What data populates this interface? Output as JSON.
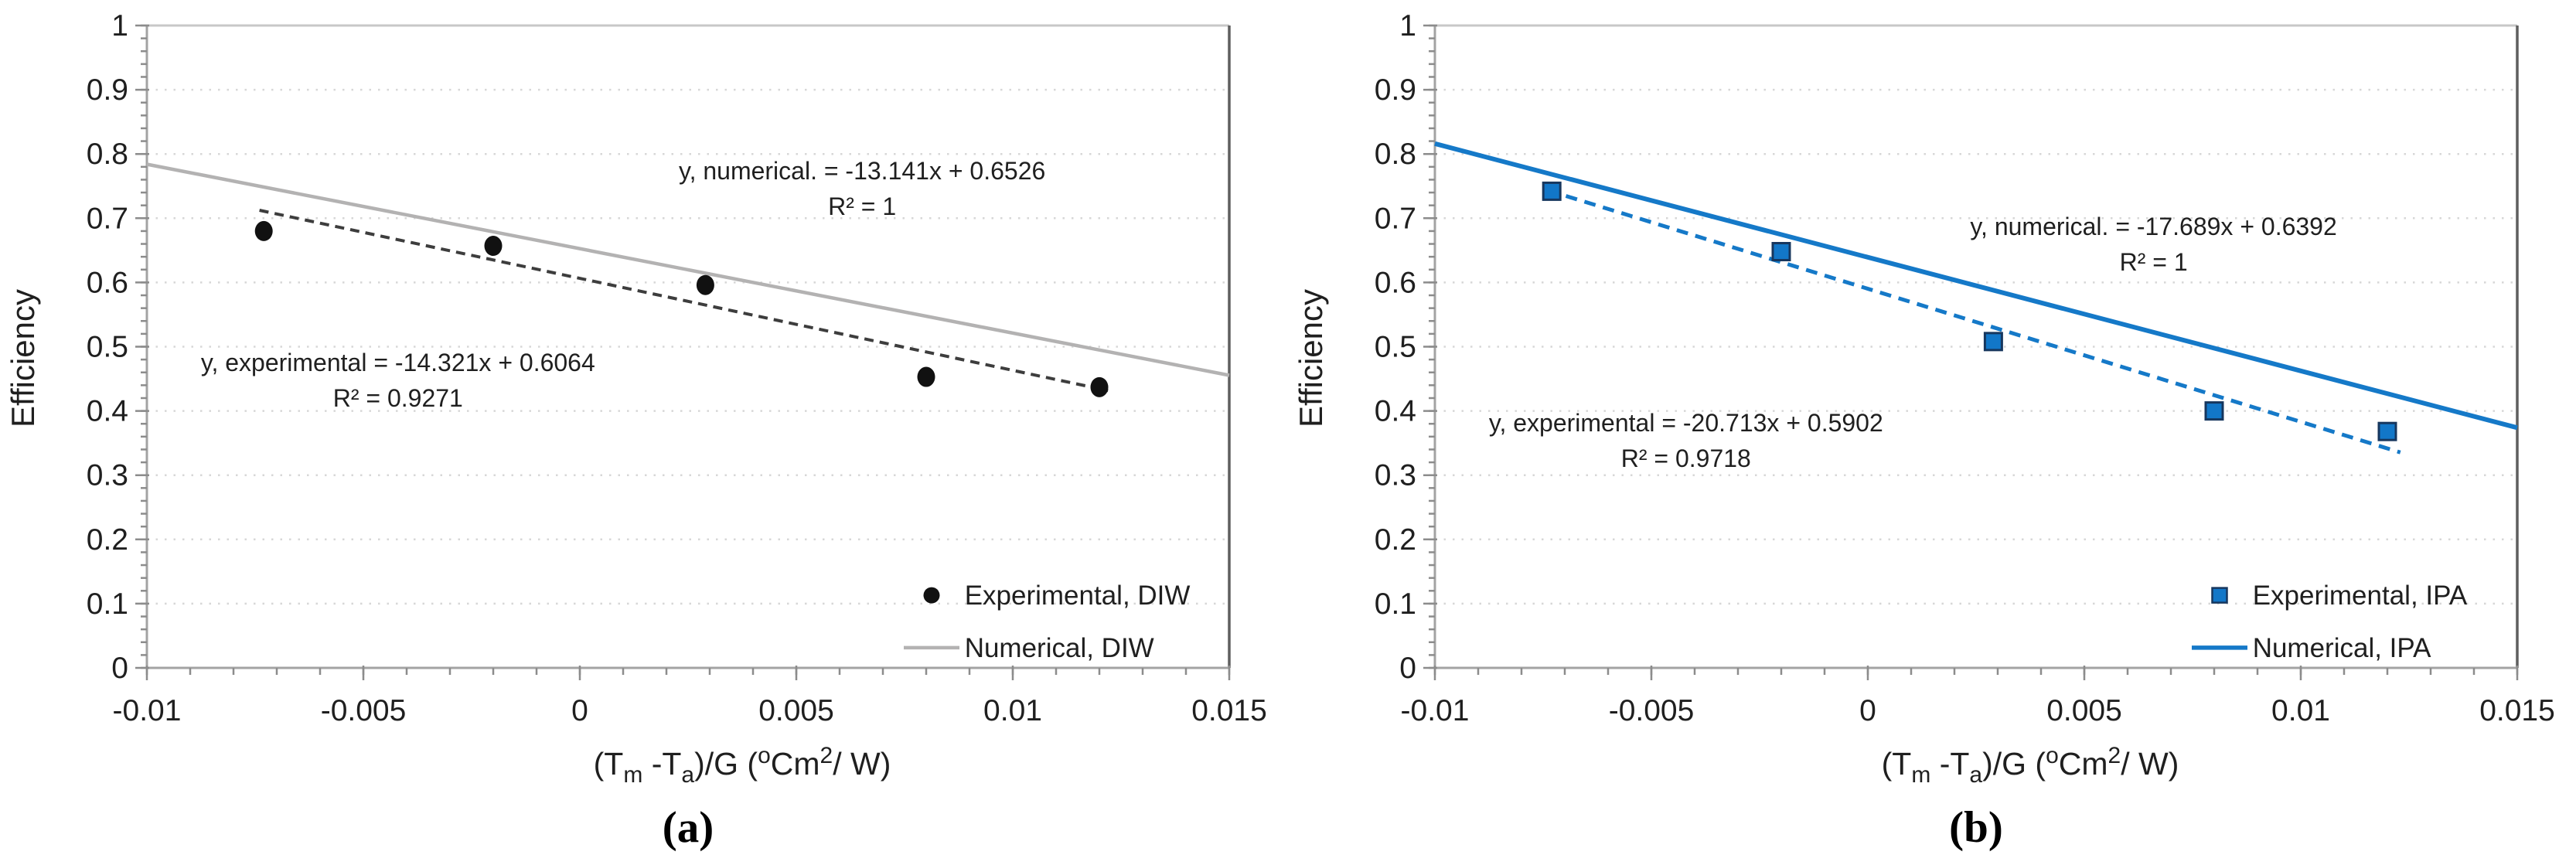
{
  "figure": {
    "background": "#ffffff",
    "panels": [
      {
        "caption": "(a)"
      },
      {
        "caption": "(b)"
      }
    ]
  },
  "chart_data": [
    {
      "type": "scatter",
      "panel_label": "(a)",
      "title": "",
      "ylabel": "Efficiency",
      "xlabel_plain": "(Tm -Ta)/G (oCm2/ W)",
      "xlabel_parts": [
        {
          "t": "(T"
        },
        {
          "t": "m",
          "style": "sub"
        },
        {
          "t": " -T"
        },
        {
          "t": "a",
          "style": "sub"
        },
        {
          "t": ")/G ("
        },
        {
          "t": "o",
          "style": "sup"
        },
        {
          "t": "Cm"
        },
        {
          "t": "2",
          "style": "sup"
        },
        {
          "t": "/ W)"
        }
      ],
      "xlim": [
        -0.01,
        0.015
      ],
      "ylim": [
        0,
        1
      ],
      "x_major_ticks": [
        -0.01,
        -0.005,
        0,
        0.005,
        0.01,
        0.015
      ],
      "x_tick_labels": [
        "-0.01",
        "-0.005",
        "0",
        "0.005",
        "0.01",
        "0.015"
      ],
      "x_minor_step": 0.001,
      "y_major_step": 0.1,
      "y_minor_step": 0.02,
      "y_tick_labels": [
        "0",
        "0.1",
        "0.2",
        "0.3",
        "0.4",
        "0.5",
        "0.6",
        "0.7",
        "0.8",
        "0.9",
        "1"
      ],
      "grid": "horizontal dotted",
      "legend_position": "lower right",
      "colors": {
        "marker": "#111111",
        "marker_edge": "#111111",
        "numerical_line": "#b3b2b2",
        "trend_dash": "#3d3d3d"
      },
      "series": [
        {
          "name": "Experimental, DIW",
          "kind": "scatter",
          "marker": "circle",
          "points": [
            [
              -0.0073,
              0.68
            ],
            [
              -0.002,
              0.657
            ],
            [
              0.0029,
              0.596
            ],
            [
              0.008,
              0.453
            ],
            [
              0.012,
              0.437
            ]
          ],
          "trendline": {
            "slope": -14.321,
            "intercept": 0.6064,
            "r2": 0.9271,
            "x_start": -0.0074,
            "x_end": 0.0122,
            "dashed": true
          }
        },
        {
          "name": "Numerical, DIW",
          "kind": "line",
          "equation": {
            "slope": -13.141,
            "intercept": 0.6526,
            "r2": 1,
            "x_start": -0.01,
            "x_end": 0.015
          }
        }
      ],
      "annotations": [
        {
          "lines": [
            "y, numerical. = -13.141x + 0.6526",
            "R² = 1"
          ],
          "ax": 0.00652,
          "ay": 0.7725
        },
        {
          "lines": [
            "y, experimental = -14.321x + 0.6064",
            "R² = 0.9271"
          ],
          "ax": -0.0042,
          "ay": 0.474
        }
      ],
      "legend": [
        {
          "label": "Experimental, DIW",
          "marker": "circle"
        },
        {
          "label": "Numerical, DIW",
          "marker": "line"
        }
      ]
    },
    {
      "type": "scatter",
      "panel_label": "(b)",
      "title": "",
      "ylabel": "Efficiency",
      "xlabel_plain": "(Tm -Ta)/G (oCm2/ W)",
      "xlabel_parts": [
        {
          "t": "(T"
        },
        {
          "t": "m",
          "style": "sub"
        },
        {
          "t": " -T"
        },
        {
          "t": "a",
          "style": "sub"
        },
        {
          "t": ")/G ("
        },
        {
          "t": "o",
          "style": "sup"
        },
        {
          "t": "Cm"
        },
        {
          "t": "2",
          "style": "sup"
        },
        {
          "t": "/ W)"
        }
      ],
      "xlim": [
        -0.01,
        0.015
      ],
      "ylim": [
        0,
        1
      ],
      "x_major_ticks": [
        -0.01,
        -0.005,
        0,
        0.005,
        0.01,
        0.015
      ],
      "x_tick_labels": [
        "-0.01",
        "-0.005",
        "0",
        "0.005",
        "0.01",
        "0.015"
      ],
      "x_minor_step": 0.001,
      "y_major_step": 0.1,
      "y_minor_step": 0.02,
      "y_tick_labels": [
        "0",
        "0.1",
        "0.2",
        "0.3",
        "0.4",
        "0.5",
        "0.6",
        "0.7",
        "0.8",
        "0.9",
        "1"
      ],
      "grid": "horizontal dotted",
      "legend_position": "lower right",
      "colors": {
        "marker": "#1277c8",
        "marker_edge": "#17375e",
        "numerical_line": "#1579c8",
        "trend_dash": "#1579c8"
      },
      "series": [
        {
          "name": "Experimental, IPA",
          "kind": "scatter",
          "marker": "square",
          "points": [
            [
              -0.0073,
              0.742
            ],
            [
              -0.002,
              0.648
            ],
            [
              0.0029,
              0.508
            ],
            [
              0.008,
              0.4
            ],
            [
              0.012,
              0.368
            ]
          ],
          "trendline": {
            "slope": -20.713,
            "intercept": 0.5902,
            "r2": 0.9718,
            "x_start": -0.0074,
            "x_end": 0.0123,
            "dashed": true
          }
        },
        {
          "name": "Numerical, IPA",
          "kind": "line",
          "equation": {
            "slope": -17.689,
            "intercept": 0.6392,
            "r2": 1,
            "x_start": -0.01,
            "x_end": 0.015
          }
        }
      ],
      "annotations": [
        {
          "lines": [
            "y, numerical. = -17.689x + 0.6392",
            "R² = 1"
          ],
          "ax": 0.0066,
          "ay": 0.686
        },
        {
          "lines": [
            "y, experimental = -20.713x + 0.5902",
            "R² = 0.9718"
          ],
          "ax": -0.0042,
          "ay": 0.38
        }
      ],
      "legend": [
        {
          "label": "Experimental, IPA",
          "marker": "square"
        },
        {
          "label": "Numerical, IPA",
          "marker": "line"
        }
      ]
    }
  ]
}
